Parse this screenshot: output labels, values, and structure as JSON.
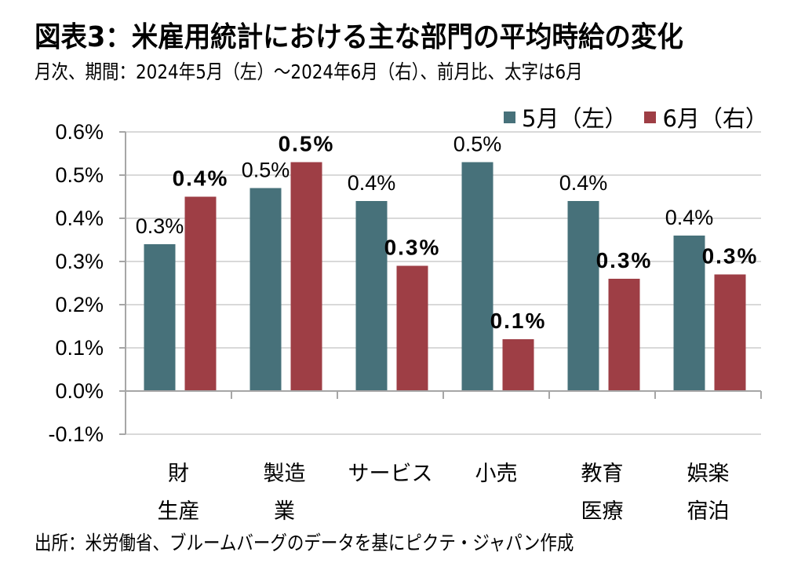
{
  "header": {
    "title": "図表3：米雇用統計における主な部門の平均時給の変化",
    "subtitle": "月次、期間：2024年5月（左）～2024年6月（右）、前月比、太字は6月"
  },
  "source": "出所：米労働省、ブルームバーグのデータを基にピクテ・ジャパン作成",
  "chart_data": {
    "type": "bar",
    "title": "図表3：米雇用統計における主な部門の平均時給の変化",
    "xlabel": "",
    "ylabel": "",
    "ylim": [
      -0.1,
      0.6
    ],
    "yticks": [
      0.6,
      0.5,
      0.4,
      0.3,
      0.2,
      0.1,
      0.0,
      -0.1
    ],
    "ytick_labels": [
      "0.6%",
      "0.5%",
      "0.4%",
      "0.3%",
      "0.2%",
      "0.1%",
      "0.0%",
      "-0.1%"
    ],
    "grid": true,
    "legend_position": "top-right",
    "categories": [
      {
        "line1": "財",
        "line2": "生産"
      },
      {
        "line1": "製造",
        "line2": "業"
      },
      {
        "line1": "サービス",
        "line2": ""
      },
      {
        "line1": "小売",
        "line2": ""
      },
      {
        "line1": "教育",
        "line2": "医療"
      },
      {
        "line1": "娯楽",
        "line2": "宿泊"
      }
    ],
    "series": [
      {
        "name": "5月（左）",
        "color": "#47717A",
        "values": [
          0.34,
          0.47,
          0.44,
          0.53,
          0.44,
          0.36
        ],
        "labels": [
          "0.3%",
          "0.5%",
          "0.4%",
          "0.5%",
          "0.4%",
          "0.4%"
        ],
        "bold": false
      },
      {
        "name": "6月（右）",
        "color": "#9E3E45",
        "values": [
          0.45,
          0.53,
          0.29,
          0.12,
          0.26,
          0.27
        ],
        "labels": [
          "0.4%",
          "0.5%",
          "0.3%",
          "0.1%",
          "0.3%",
          "0.3%"
        ],
        "bold": true
      }
    ]
  }
}
